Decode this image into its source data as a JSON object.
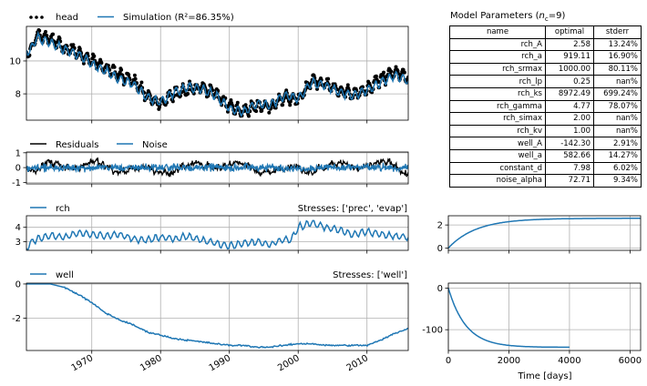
{
  "chart_data": [
    {
      "id": "head",
      "type": "line",
      "legend": [
        "head",
        "Simulation (R²=86.35%)"
      ],
      "legend_position": "top-left",
      "series_colors": [
        "#000000",
        "#1f77b4"
      ],
      "x_range": [
        1960.5,
        2016.0
      ],
      "ylim": [
        6.4,
        12.1
      ],
      "yticks": [
        "8",
        "10"
      ],
      "yticks_values": [
        8,
        10
      ],
      "grid": true,
      "x_key": [
        1961,
        1962,
        1964,
        1966,
        1968,
        1970,
        1972,
        1974,
        1976,
        1978,
        1980,
        1982,
        1984,
        1986,
        1988,
        1990,
        1992,
        1994,
        1996,
        1998,
        2000,
        2002,
        2004,
        2006,
        2008,
        2010,
        2012,
        2014,
        2016
      ],
      "observed_key": [
        10.5,
        11.6,
        11.3,
        10.8,
        10.5,
        10.0,
        9.6,
        9.1,
        8.8,
        7.9,
        7.4,
        8.0,
        8.3,
        8.4,
        8.0,
        7.3,
        6.9,
        7.3,
        7.2,
        7.8,
        7.6,
        8.8,
        8.6,
        8.2,
        8.0,
        8.3,
        8.9,
        9.3,
        9.1
      ],
      "simulated_key": [
        10.6,
        11.4,
        11.1,
        10.7,
        10.4,
        9.8,
        9.4,
        8.9,
        8.6,
        7.8,
        7.5,
        8.1,
        8.4,
        8.3,
        7.9,
        7.1,
        6.9,
        7.4,
        7.3,
        7.9,
        7.7,
        8.7,
        8.5,
        8.1,
        7.9,
        8.2,
        8.7,
        9.1,
        8.8
      ]
    },
    {
      "id": "residuals",
      "type": "line",
      "legend": [
        "Residuals",
        "Noise"
      ],
      "legend_position": "top-left",
      "series_colors": [
        "#000000",
        "#1f77b4"
      ],
      "x_range": [
        1960.5,
        2016.0
      ],
      "ylim": [
        -1.1,
        1.05
      ],
      "yticks": [
        "-1",
        "0",
        "1"
      ],
      "yticks_values": [
        -1,
        0,
        1
      ],
      "grid": true
    },
    {
      "id": "rch",
      "type": "line",
      "legend": [
        "rch"
      ],
      "title_right": "Stresses: ['prec', 'evap']",
      "series_colors": [
        "#1f77b4"
      ],
      "x_range": [
        1960.5,
        2016.0
      ],
      "ylim": [
        2.4,
        4.8
      ],
      "yticks": [
        "3",
        "4"
      ],
      "yticks_values": [
        3,
        4
      ],
      "grid": true,
      "x_key": [
        1960.6,
        1961,
        1962,
        1964,
        1966,
        1968,
        1970,
        1972,
        1974,
        1976,
        1978,
        1980,
        1982,
        1984,
        1986,
        1988,
        1990,
        1992,
        1994,
        1996,
        1998,
        1999,
        2000,
        2002,
        2004,
        2006,
        2008,
        2010,
        2012,
        2014,
        2016
      ],
      "values_key": [
        2.5,
        2.9,
        3.2,
        3.4,
        3.3,
        3.6,
        3.5,
        3.4,
        3.5,
        3.2,
        3.1,
        3.3,
        3.2,
        3.4,
        3.1,
        2.9,
        2.7,
        2.9,
        3.0,
        2.8,
        3.2,
        3.1,
        4.0,
        4.3,
        4.0,
        3.8,
        3.5,
        3.7,
        3.5,
        3.4,
        3.3
      ]
    },
    {
      "id": "well",
      "type": "line",
      "legend": [
        "well"
      ],
      "title_right": "Stresses: ['well']",
      "series_colors": [
        "#1f77b4"
      ],
      "x_range": [
        1960.5,
        2016.0
      ],
      "ylim": [
        -3.9,
        0.05
      ],
      "yticks": [
        "-2",
        "0"
      ],
      "yticks_values": [
        -2,
        0
      ],
      "xticks": [
        "1970",
        "1980",
        "1990",
        "2000",
        "2010"
      ],
      "xticks_values": [
        1970,
        1980,
        1990,
        2000,
        2010
      ],
      "grid": true,
      "x_key": [
        1960.5,
        1964,
        1966,
        1968,
        1970,
        1972,
        1974,
        1976,
        1978,
        1980,
        1982,
        1984,
        1986,
        1988,
        1990,
        1992,
        1994,
        1996,
        1998,
        2000,
        2002,
        2004,
        2006,
        2008,
        2010,
        2012,
        2014,
        2016
      ],
      "values_key": [
        0.0,
        0.0,
        -0.2,
        -0.6,
        -1.1,
        -1.7,
        -2.1,
        -2.4,
        -2.8,
        -3.0,
        -3.2,
        -3.3,
        -3.4,
        -3.5,
        -3.6,
        -3.6,
        -3.7,
        -3.7,
        -3.6,
        -3.5,
        -3.5,
        -3.6,
        -3.6,
        -3.6,
        -3.6,
        -3.3,
        -2.9,
        -2.6
      ]
    },
    {
      "id": "rch_response",
      "type": "line",
      "x_range": [
        0,
        6350
      ],
      "ylim": [
        -0.2,
        2.8
      ],
      "yticks": [
        "0",
        "2"
      ],
      "yticks_values": [
        0,
        2
      ],
      "grid": true,
      "A": 2.58,
      "a": 919.11,
      "x_end": 6350
    },
    {
      "id": "well_response",
      "type": "line",
      "xlabel": "Time [days]",
      "x_range": [
        0,
        6350
      ],
      "ylim": [
        -150,
        12
      ],
      "yticks": [
        "-100",
        "0"
      ],
      "yticks_values": [
        -100,
        0
      ],
      "xticks": [
        "0",
        "2000",
        "4000",
        "6000"
      ],
      "xticks_values": [
        0,
        2000,
        4000,
        6000
      ],
      "grid": true,
      "A": -142.3,
      "a": 582.66,
      "x_end": 4000
    }
  ],
  "params": {
    "title_prefix": "Model Parameters (",
    "title_n": "n",
    "title_sub": "c",
    "title_suffix": "=9)",
    "headers": [
      "name",
      "optimal",
      "stderr"
    ],
    "rows": [
      [
        "rch_A",
        "2.58",
        "13.24%"
      ],
      [
        "rch_a",
        "919.11",
        "16.90%"
      ],
      [
        "rch_srmax",
        "1000.00",
        "80.11%"
      ],
      [
        "rch_lp",
        "0.25",
        "nan%"
      ],
      [
        "rch_ks",
        "8972.49",
        "699.24%"
      ],
      [
        "rch_gamma",
        "4.77",
        "78.07%"
      ],
      [
        "rch_simax",
        "2.00",
        "nan%"
      ],
      [
        "rch_kv",
        "1.00",
        "nan%"
      ],
      [
        "well_A",
        "-142.30",
        "2.91%"
      ],
      [
        "well_a",
        "582.66",
        "14.27%"
      ],
      [
        "constant_d",
        "7.98",
        "6.02%"
      ],
      [
        "noise_alpha",
        "72.71",
        "9.34%"
      ]
    ]
  }
}
